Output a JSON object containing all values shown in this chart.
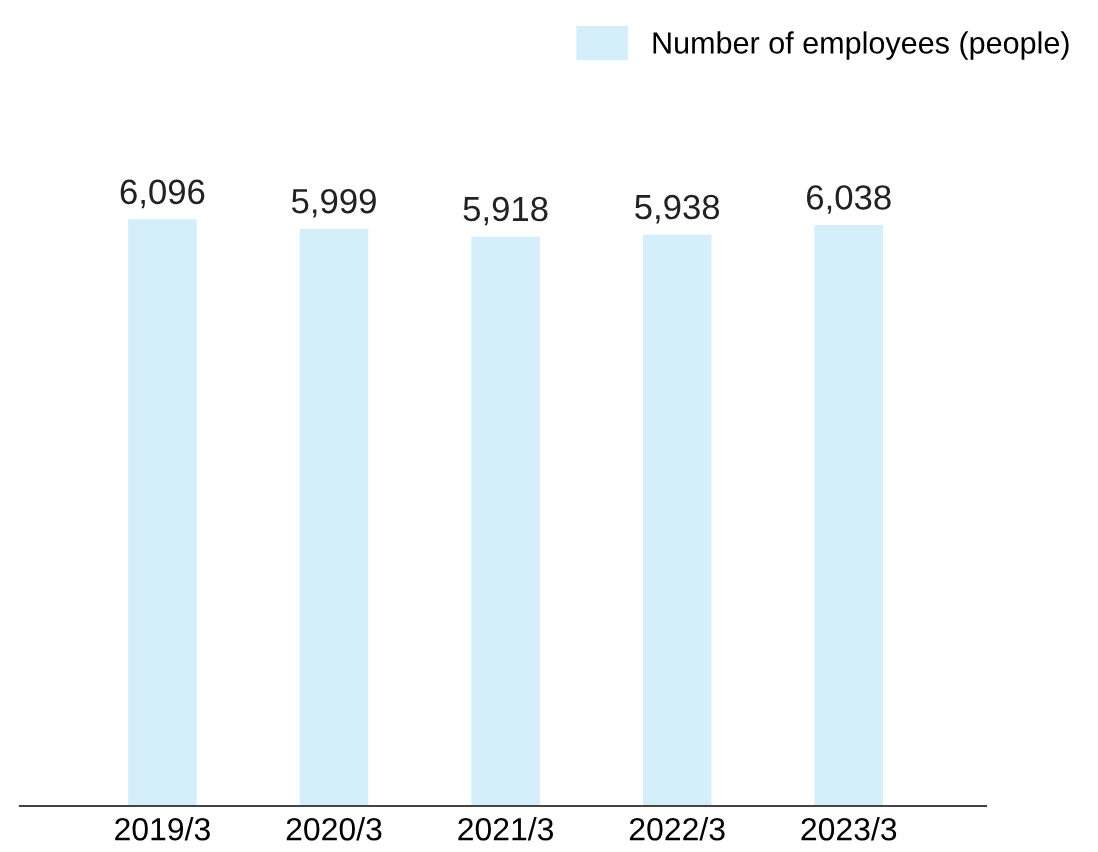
{
  "chart_data": {
    "type": "bar",
    "categories": [
      "2019/3",
      "2020/3",
      "2021/3",
      "2022/3",
      "2023/3"
    ],
    "series": [
      {
        "name": "Number of employees (people)",
        "color": "#d5effa",
        "values": [
          6096,
          5999,
          5918,
          5938,
          6038
        ],
        "value_labels": [
          "6,096",
          "5,999",
          "5,918",
          "5,938",
          "6,038"
        ]
      }
    ],
    "legend": "top right",
    "grid": false,
    "tick_labels": "x"
  }
}
